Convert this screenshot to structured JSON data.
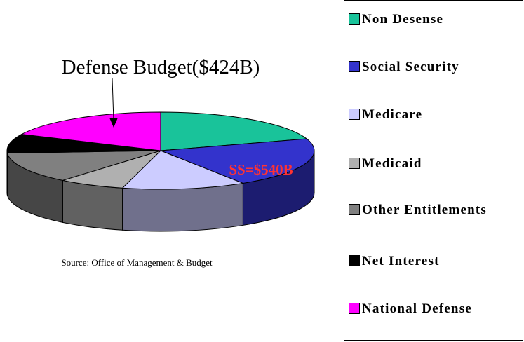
{
  "chart_data": {
    "type": "pie",
    "categories": [
      "Non Desense",
      "Social Security",
      "Medicare",
      "Medicaid",
      "Other Entitlements",
      "Net Interest",
      "National Defense"
    ],
    "values": [
      20,
      21,
      13,
      7,
      13,
      8,
      18
    ],
    "colors": [
      "#19c39a",
      "#3333cc",
      "#ccccff",
      "#b0b0b0",
      "#808080",
      "#000000",
      "#ff00ff"
    ],
    "annotations": [
      "Defense Budget($424B)",
      "SS=$540B"
    ],
    "source": "Source: Office of Management & Budget",
    "legend": "right"
  }
}
